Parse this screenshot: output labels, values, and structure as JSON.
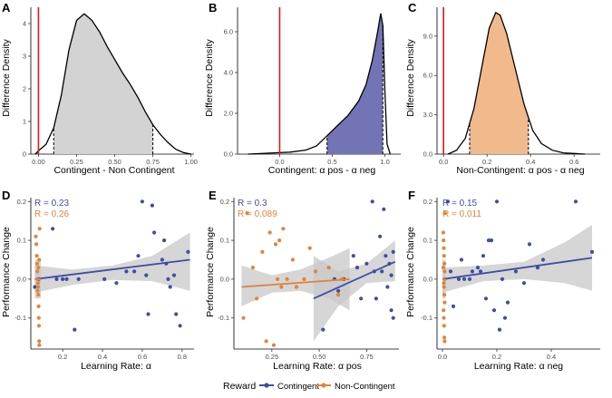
{
  "colors": {
    "red_line": "#d7191c",
    "contingent": "#3f4ea3",
    "non_contingent": "#e0843a",
    "fill_A": "#d3d3d3",
    "fill_B": "#7274b5",
    "fill_C": "#f2b98d",
    "band": "#c8c8c8"
  },
  "legend": {
    "title": "Reward",
    "items": [
      {
        "label": "Contingent",
        "color": "#3f4ea3"
      },
      {
        "label": "Non-Contingent",
        "color": "#e0843a"
      }
    ]
  },
  "chart_data": [
    {
      "panel": "A",
      "type": "area",
      "xlabel": "Contingent - Non Contingent",
      "ylabel": "Difference Density",
      "xlim": [
        -0.05,
        1.02
      ],
      "ylim": [
        0,
        4.5
      ],
      "xticks": [
        0.0,
        0.25,
        0.5,
        0.75,
        1.0
      ],
      "xtick_labels": [
        "0.00",
        "0.25",
        "0.50",
        "0.75",
        "1.00"
      ],
      "yticks": [
        0,
        1,
        2,
        3,
        4
      ],
      "ytick_labels": [
        "0",
        "1",
        "2",
        "3",
        "4"
      ],
      "vline": 0.0,
      "interval": [
        0.1,
        0.75
      ],
      "fill_color": "#d3d3d3",
      "density": {
        "x": [
          -0.02,
          0.0,
          0.05,
          0.1,
          0.15,
          0.2,
          0.25,
          0.3,
          0.35,
          0.4,
          0.45,
          0.5,
          0.55,
          0.6,
          0.65,
          0.7,
          0.75,
          0.8,
          0.85,
          0.9,
          0.95,
          1.0
        ],
        "y": [
          0.0,
          0.1,
          0.3,
          0.8,
          1.8,
          3.2,
          4.1,
          4.3,
          4.1,
          3.75,
          3.3,
          2.9,
          2.5,
          2.15,
          1.75,
          1.3,
          0.9,
          0.6,
          0.35,
          0.15,
          0.05,
          0.0
        ]
      }
    },
    {
      "panel": "B",
      "type": "area",
      "xlabel": "Contingent: α pos - α neg",
      "ylabel": "Difference Density",
      "xlim": [
        -0.4,
        1.15
      ],
      "ylim": [
        0,
        7.2
      ],
      "xticks": [
        0.0,
        0.5,
        1.0
      ],
      "xtick_labels": [
        "0.0",
        "0.5",
        "1.0"
      ],
      "yticks": [
        0,
        2,
        4,
        6
      ],
      "ytick_labels": [
        "0.0",
        "2.0",
        "4.0",
        "6.0"
      ],
      "vline": 0.0,
      "interval": [
        0.45,
        0.98
      ],
      "fill_color": "#7274b5",
      "density": {
        "x": [
          -0.3,
          -0.1,
          0.1,
          0.25,
          0.35,
          0.45,
          0.55,
          0.65,
          0.75,
          0.82,
          0.88,
          0.93,
          0.96,
          0.98,
          1.0,
          1.02,
          1.05
        ],
        "y": [
          0.0,
          0.05,
          0.1,
          0.2,
          0.4,
          0.9,
          1.4,
          1.9,
          2.6,
          3.4,
          4.6,
          6.0,
          6.9,
          6.3,
          3.0,
          0.5,
          0.0
        ]
      }
    },
    {
      "panel": "C",
      "type": "area",
      "xlabel": "Non-Contingent: α pos - α neg",
      "ylabel": "Difference Density",
      "xlim": [
        -0.03,
        0.72
      ],
      "ylim": [
        0,
        11.2
      ],
      "xticks": [
        0.0,
        0.2,
        0.4,
        0.6
      ],
      "xtick_labels": [
        "0.0",
        "0.2",
        "0.4",
        "0.6"
      ],
      "yticks": [
        0,
        3,
        6,
        9
      ],
      "ytick_labels": [
        "0.0",
        "3.0",
        "6.0",
        "9.0"
      ],
      "vline": 0.0,
      "interval": [
        0.12,
        0.39
      ],
      "fill_color": "#f2b98d",
      "density": {
        "x": [
          0.02,
          0.06,
          0.1,
          0.14,
          0.18,
          0.21,
          0.24,
          0.26,
          0.29,
          0.33,
          0.37,
          0.41,
          0.45,
          0.5,
          0.55,
          0.6,
          0.65
        ],
        "y": [
          0.0,
          0.3,
          1.2,
          3.5,
          7.0,
          9.6,
          10.8,
          10.6,
          9.2,
          6.5,
          3.8,
          1.8,
          0.8,
          0.3,
          0.1,
          0.05,
          0.0
        ]
      }
    },
    {
      "panel": "D",
      "type": "scatter",
      "xlabel": "Learning Rate: α",
      "ylabel": "Performance Change",
      "xlim": [
        0.04,
        0.86
      ],
      "ylim": [
        -0.18,
        0.21
      ],
      "xticks": [
        0.2,
        0.4,
        0.6,
        0.8
      ],
      "xtick_labels": [
        "0.2",
        "0.4",
        "0.6",
        "0.8"
      ],
      "yticks": [
        -0.1,
        0.0,
        0.1,
        0.2
      ],
      "ytick_labels": [
        "-0.1",
        "0.0",
        "0.1",
        "0.2"
      ],
      "stats": [
        {
          "text": "R = 0.23",
          "series": "Contingent"
        },
        {
          "text": "R = 0.26",
          "series": "Non-Contingent"
        }
      ],
      "series": [
        {
          "name": "Contingent",
          "points": [
            [
              0.06,
              -0.02
            ],
            [
              0.08,
              0.0
            ],
            [
              0.15,
              0.13
            ],
            [
              0.17,
              0.0
            ],
            [
              0.2,
              0.0
            ],
            [
              0.22,
              0.0
            ],
            [
              0.26,
              -0.13
            ],
            [
              0.28,
              0.0
            ],
            [
              0.41,
              0.0
            ],
            [
              0.47,
              -0.01
            ],
            [
              0.52,
              0.02
            ],
            [
              0.56,
              0.02
            ],
            [
              0.58,
              0.06
            ],
            [
              0.6,
              0.2
            ],
            [
              0.62,
              0.01
            ],
            [
              0.63,
              -0.09
            ],
            [
              0.65,
              0.19
            ],
            [
              0.66,
              0.12
            ],
            [
              0.7,
              0.05
            ],
            [
              0.71,
              0.1
            ],
            [
              0.72,
              0.04
            ],
            [
              0.73,
              0.0
            ],
            [
              0.74,
              -0.02
            ],
            [
              0.76,
              0.01
            ],
            [
              0.77,
              -0.09
            ],
            [
              0.79,
              -0.12
            ],
            [
              0.83,
              0.07
            ]
          ],
          "fit": {
            "x": [
              0.06,
              0.84
            ],
            "y": [
              0.0,
              0.05
            ]
          },
          "band": {
            "x": [
              0.06,
              0.25,
              0.45,
              0.65,
              0.84
            ],
            "lower": [
              -0.035,
              -0.015,
              -0.002,
              -0.005,
              -0.03
            ],
            "upper": [
              0.035,
              0.025,
              0.035,
              0.06,
              0.12
            ]
          }
        },
        {
          "name": "Non-Contingent",
          "points": [
            [
              0.065,
              0.11
            ],
            [
              0.068,
              0.09
            ],
            [
              0.07,
              0.06
            ],
            [
              0.072,
              0.04
            ],
            [
              0.073,
              0.02
            ],
            [
              0.075,
              0.0
            ],
            [
              0.076,
              -0.01
            ],
            [
              0.077,
              -0.02
            ],
            [
              0.078,
              -0.04
            ],
            [
              0.079,
              -0.07
            ],
            [
              0.08,
              -0.1
            ],
            [
              0.081,
              -0.12
            ],
            [
              0.082,
              -0.16
            ],
            [
              0.083,
              -0.17
            ],
            [
              0.084,
              0.13
            ],
            [
              0.078,
              0.03
            ],
            [
              0.074,
              -0.03
            ],
            [
              0.082,
              0.05
            ]
          ],
          "fit": {
            "x": [
              0.06,
              0.09
            ],
            "y": [
              0.0,
              0.0
            ]
          },
          "band": {
            "x": [
              0.06,
              0.09
            ],
            "lower": [
              -0.05,
              -0.05
            ],
            "upper": [
              0.05,
              0.05
            ]
          }
        }
      ]
    },
    {
      "panel": "E",
      "type": "scatter",
      "xlabel": "Learning Rate: α pos",
      "ylabel": "Performance Change",
      "xlim": [
        0.05,
        0.92
      ],
      "ylim": [
        -0.18,
        0.21
      ],
      "xticks": [
        0.25,
        0.5,
        0.75
      ],
      "xtick_labels": [
        "0.25",
        "0.50",
        "0.75"
      ],
      "yticks": [
        -0.1,
        0.0,
        0.1,
        0.2
      ],
      "ytick_labels": [
        "-0.1",
        "0.0",
        "0.1",
        "0.2"
      ],
      "stats": [
        {
          "text": "R = 0.3",
          "series": "Contingent"
        },
        {
          "text": "R = 0.089",
          "series": "Non-Contingent"
        }
      ],
      "series": [
        {
          "name": "Contingent",
          "points": [
            [
              0.52,
              -0.13
            ],
            [
              0.58,
              0.0
            ],
            [
              0.6,
              -0.03
            ],
            [
              0.63,
              0.0
            ],
            [
              0.68,
              0.06
            ],
            [
              0.7,
              0.03
            ],
            [
              0.72,
              -0.05
            ],
            [
              0.75,
              0.04
            ],
            [
              0.78,
              0.2
            ],
            [
              0.79,
              0.02
            ],
            [
              0.8,
              -0.05
            ],
            [
              0.82,
              0.11
            ],
            [
              0.83,
              0.02
            ],
            [
              0.84,
              0.18
            ],
            [
              0.85,
              0.06
            ],
            [
              0.86,
              -0.02
            ],
            [
              0.87,
              0.04
            ],
            [
              0.88,
              -0.08
            ],
            [
              0.88,
              0.01
            ],
            [
              0.89,
              -0.1
            ],
            [
              0.89,
              0.07
            ]
          ],
          "fit": {
            "x": [
              0.47,
              0.9
            ],
            "y": [
              -0.05,
              0.045
            ]
          },
          "band": {
            "x": [
              0.47,
              0.6,
              0.75,
              0.9
            ],
            "lower": [
              -0.16,
              -0.07,
              -0.01,
              -0.005
            ],
            "upper": [
              0.06,
              0.02,
              0.04,
              0.1
            ]
          }
        },
        {
          "name": "Non-Contingent",
          "points": [
            [
              0.1,
              -0.1
            ],
            [
              0.12,
              0.17
            ],
            [
              0.15,
              0.03
            ],
            [
              0.17,
              -0.05
            ],
            [
              0.2,
              0.07
            ],
            [
              0.22,
              -0.16
            ],
            [
              0.24,
              0.12
            ],
            [
              0.26,
              -0.17
            ],
            [
              0.27,
              0.09
            ],
            [
              0.28,
              0.0
            ],
            [
              0.29,
              0.1
            ],
            [
              0.3,
              -0.02
            ],
            [
              0.31,
              0.13
            ],
            [
              0.33,
              0.0
            ],
            [
              0.36,
              0.05
            ],
            [
              0.38,
              -0.02
            ],
            [
              0.42,
              0.0
            ],
            [
              0.45,
              0.08
            ],
            [
              0.48,
              0.02
            ],
            [
              0.55,
              0.03
            ],
            [
              0.6,
              -0.04
            ],
            [
              0.62,
              0.0
            ]
          ],
          "fit": {
            "x": [
              0.09,
              0.66
            ],
            "y": [
              -0.02,
              0.0
            ]
          },
          "band": {
            "x": [
              0.09,
              0.25,
              0.4,
              0.55,
              0.66
            ],
            "lower": [
              -0.07,
              -0.035,
              -0.03,
              -0.05,
              -0.08
            ],
            "upper": [
              0.035,
              0.01,
              0.025,
              0.055,
              0.08
            ]
          }
        }
      ]
    },
    {
      "panel": "F",
      "type": "scatter",
      "xlabel": "Learning Rate: α neg",
      "ylabel": "Performance Change",
      "xlim": [
        -0.02,
        0.58
      ],
      "ylim": [
        -0.18,
        0.21
      ],
      "xticks": [
        0.0,
        0.2,
        0.4
      ],
      "xtick_labels": [
        "0.0",
        "0.2",
        "0.4"
      ],
      "yticks": [
        -0.1,
        0.0,
        0.1,
        0.2
      ],
      "ytick_labels": [
        "-0.1",
        "0.0",
        "0.1",
        "0.2"
      ],
      "stats": [
        {
          "text": "R = 0.15",
          "series": "Contingent"
        },
        {
          "text": "R = 0.011",
          "series": "Non-Contingent"
        }
      ],
      "series": [
        {
          "name": "Contingent",
          "points": [
            [
              0.02,
              0.2
            ],
            [
              0.03,
              0.02
            ],
            [
              0.04,
              -0.07
            ],
            [
              0.06,
              0.0
            ],
            [
              0.07,
              0.05
            ],
            [
              0.08,
              0.0
            ],
            [
              0.1,
              0.0
            ],
            [
              0.11,
              0.02
            ],
            [
              0.13,
              0.03
            ],
            [
              0.14,
              0.02
            ],
            [
              0.15,
              0.06
            ],
            [
              0.16,
              -0.05
            ],
            [
              0.17,
              0.1
            ],
            [
              0.18,
              0.1
            ],
            [
              0.19,
              -0.08
            ],
            [
              0.2,
              0.2
            ],
            [
              0.21,
              -0.13
            ],
            [
              0.22,
              0.0
            ],
            [
              0.23,
              -0.1
            ],
            [
              0.24,
              -0.06
            ],
            [
              0.27,
              0.02
            ],
            [
              0.3,
              -0.01
            ],
            [
              0.32,
              0.09
            ],
            [
              0.35,
              0.03
            ],
            [
              0.37,
              0.05
            ],
            [
              0.49,
              0.2
            ],
            [
              0.55,
              0.07
            ]
          ],
          "fit": {
            "x": [
              0.0,
              0.55
            ],
            "y": [
              0.0,
              0.055
            ]
          },
          "band": {
            "x": [
              0.0,
              0.15,
              0.3,
              0.45,
              0.55
            ],
            "lower": [
              -0.035,
              -0.005,
              0.0,
              -0.01,
              -0.03
            ],
            "upper": [
              0.03,
              0.035,
              0.045,
              0.095,
              0.14
            ]
          }
        },
        {
          "name": "Non-Contingent",
          "points": [
            [
              0.003,
              0.12
            ],
            [
              0.004,
              0.1
            ],
            [
              0.005,
              0.08
            ],
            [
              0.006,
              0.06
            ],
            [
              0.007,
              0.04
            ],
            [
              0.008,
              0.02
            ],
            [
              0.009,
              0.0
            ],
            [
              0.005,
              -0.01
            ],
            [
              0.006,
              -0.02
            ],
            [
              0.007,
              -0.04
            ],
            [
              0.008,
              -0.06
            ],
            [
              0.004,
              -0.08
            ],
            [
              0.005,
              -0.1
            ],
            [
              0.006,
              -0.12
            ],
            [
              0.007,
              -0.15
            ],
            [
              0.008,
              -0.16
            ],
            [
              0.009,
              0.17
            ],
            [
              0.003,
              0.03
            ]
          ],
          "fit": {
            "x": [
              0.0,
              0.012
            ],
            "y": [
              0.0,
              0.0
            ]
          },
          "band": {
            "x": [
              0.0,
              0.012
            ],
            "lower": [
              -0.05,
              -0.05
            ],
            "upper": [
              0.05,
              0.05
            ]
          }
        }
      ]
    }
  ]
}
